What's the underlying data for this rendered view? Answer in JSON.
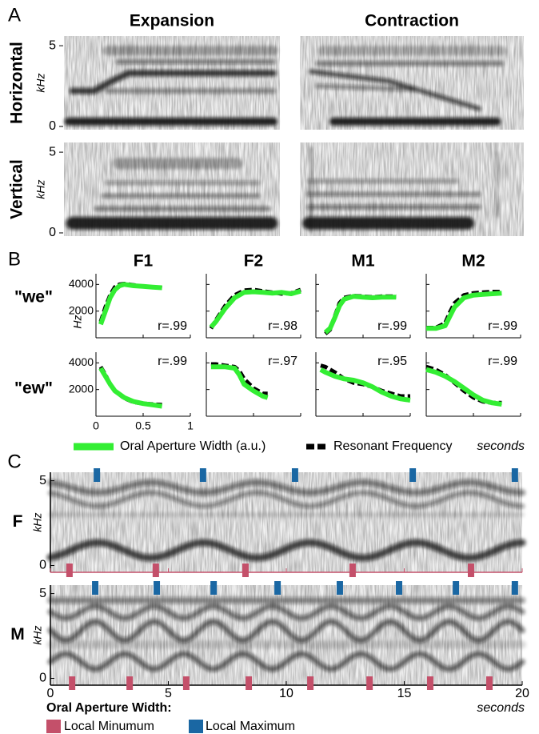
{
  "panel_labels": [
    "A",
    "B",
    "C"
  ],
  "panel_a": {
    "columns": [
      "Expansion",
      "Contraction"
    ],
    "rows": [
      "Horizontal",
      "Vertical"
    ],
    "ylabel": "kHz",
    "ylim": [
      -0.2,
      5.6
    ],
    "yticks": [
      0,
      5
    ]
  },
  "chart_data": [
    {
      "type": "line",
      "annotation": "r=.99",
      "x": [
        0.05,
        0.1,
        0.15,
        0.2,
        0.25,
        0.3,
        0.4,
        0.5,
        0.6,
        0.7
      ],
      "series": [
        {
          "color": "#000000",
          "values": [
            1200,
            2300,
            3200,
            3800,
            4000,
            4050,
            3950,
            3850,
            3800,
            3750
          ]
        },
        {
          "color": "#33ee33",
          "values": [
            1000,
            2000,
            3000,
            3600,
            3900,
            4000,
            3900,
            3850,
            3800,
            3750
          ]
        }
      ]
    },
    {
      "type": "line",
      "annotation": "r=.98",
      "x": [
        0.05,
        0.1,
        0.2,
        0.3,
        0.4,
        0.5,
        0.6,
        0.7,
        0.8,
        0.9,
        1.0
      ],
      "series": [
        {
          "color": "#000000",
          "values": [
            700,
            1300,
            2400,
            3200,
            3550,
            3600,
            3500,
            3400,
            3300,
            3350,
            3600
          ]
        },
        {
          "color": "#33ee33",
          "values": [
            800,
            1200,
            2200,
            3000,
            3400,
            3450,
            3400,
            3350,
            3400,
            3300,
            3500
          ]
        }
      ]
    },
    {
      "type": "line",
      "annotation": "r=.99",
      "x": [
        0.1,
        0.15,
        0.2,
        0.25,
        0.3,
        0.4,
        0.5,
        0.6,
        0.7,
        0.85
      ],
      "series": [
        {
          "color": "#000000",
          "values": [
            300,
            600,
            1600,
            2600,
            3000,
            3150,
            3100,
            3050,
            3100,
            3100
          ]
        },
        {
          "color": "#33ee33",
          "values": [
            400,
            700,
            1500,
            2400,
            2900,
            3100,
            3050,
            3000,
            3050,
            3050
          ]
        }
      ]
    },
    {
      "type": "line",
      "annotation": "r=.99",
      "x": [
        0,
        0.1,
        0.2,
        0.25,
        0.3,
        0.4,
        0.5,
        0.6,
        0.7,
        0.8
      ],
      "series": [
        {
          "color": "#000000",
          "values": [
            750,
            750,
            1100,
            1900,
            2600,
            3200,
            3350,
            3400,
            3450,
            3450
          ]
        },
        {
          "color": "#33ee33",
          "values": [
            700,
            700,
            900,
            1600,
            2300,
            3000,
            3200,
            3250,
            3300,
            3350
          ]
        }
      ]
    },
    {
      "type": "line",
      "annotation": "r=.99",
      "x": [
        0.05,
        0.1,
        0.15,
        0.2,
        0.3,
        0.4,
        0.5,
        0.6,
        0.7
      ],
      "series": [
        {
          "color": "#000000",
          "values": [
            3700,
            3100,
            2400,
            1900,
            1350,
            1050,
            950,
            900,
            850
          ]
        },
        {
          "color": "#33ee33",
          "values": [
            3600,
            3000,
            2400,
            1900,
            1400,
            1100,
            950,
            850,
            750
          ]
        }
      ]
    },
    {
      "type": "line",
      "annotation": "r=.97",
      "x": [
        0.05,
        0.1,
        0.2,
        0.3,
        0.35,
        0.4,
        0.5,
        0.6,
        0.65
      ],
      "series": [
        {
          "color": "#000000",
          "values": [
            3900,
            3900,
            3800,
            3700,
            3400,
            2800,
            2100,
            1700,
            1700
          ]
        },
        {
          "color": "#33ee33",
          "values": [
            3700,
            3700,
            3700,
            3600,
            3100,
            2400,
            1900,
            1500,
            1400
          ]
        }
      ]
    },
    {
      "type": "line",
      "annotation": "r=.95",
      "x": [
        0.05,
        0.1,
        0.2,
        0.3,
        0.4,
        0.5,
        0.6,
        0.7,
        0.8,
        0.9,
        1.0
      ],
      "series": [
        {
          "color": "#000000",
          "values": [
            3800,
            3700,
            3300,
            2800,
            2500,
            2400,
            2200,
            1900,
            1700,
            1500,
            1500
          ]
        },
        {
          "color": "#33ee33",
          "values": [
            3500,
            3300,
            3000,
            2800,
            2700,
            2500,
            2200,
            1800,
            1500,
            1300,
            1200
          ]
        }
      ]
    },
    {
      "type": "line",
      "annotation": "r=.99",
      "x": [
        0,
        0.1,
        0.2,
        0.3,
        0.4,
        0.5,
        0.6,
        0.7,
        0.8
      ],
      "series": [
        {
          "color": "#000000",
          "values": [
            3700,
            3500,
            3100,
            2500,
            1900,
            1400,
            1100,
            1000,
            1000
          ]
        },
        {
          "color": "#33ee33",
          "values": [
            3500,
            3300,
            3000,
            2600,
            2100,
            1600,
            1200,
            1000,
            900
          ]
        }
      ]
    }
  ],
  "panel_b": {
    "columns": [
      "F1",
      "F2",
      "M1",
      "M2"
    ],
    "rows": [
      "\"we\"",
      "\"ew\""
    ],
    "ylabel": "Hz",
    "xlim": [
      0,
      1
    ],
    "xticks": [
      0,
      0.5,
      1
    ],
    "ylim": [
      0,
      4800
    ],
    "yticks": [
      2000,
      4000
    ],
    "xlabel": "seconds",
    "legend": [
      {
        "name": "Oral Aperture Width (a.u.)",
        "color": "#33ee33"
      },
      {
        "name": "Resonant Frequency",
        "color": "#000000"
      }
    ]
  },
  "panel_c": {
    "rows": [
      {
        "label": "F",
        "minima": [
          0.81,
          4.47,
          8.27,
          12.81,
          17.83
        ],
        "maxima": [
          1.97,
          6.47,
          10.37,
          15.36,
          19.69
        ]
      },
      {
        "label": "M",
        "minima": [
          0.92,
          3.36,
          5.76,
          8.41,
          11.02,
          13.53,
          16.1,
          18.61
        ],
        "maxima": [
          1.9,
          4.51,
          6.92,
          9.63,
          12.27,
          14.78,
          17.19,
          19.69
        ]
      }
    ],
    "ylabel": "kHz",
    "ylim": [
      -0.4,
      5.5
    ],
    "yticks": [
      0,
      5
    ],
    "xlim": [
      0,
      20
    ],
    "xticks": [
      0,
      5,
      10,
      15,
      20
    ],
    "xlabel": "seconds",
    "legend_title": "Oral Aperture Width:",
    "legend": [
      {
        "name": "Local Minumum",
        "color": "#c4506a"
      },
      {
        "name": "Local Maximum",
        "color": "#1a67a3"
      }
    ]
  }
}
